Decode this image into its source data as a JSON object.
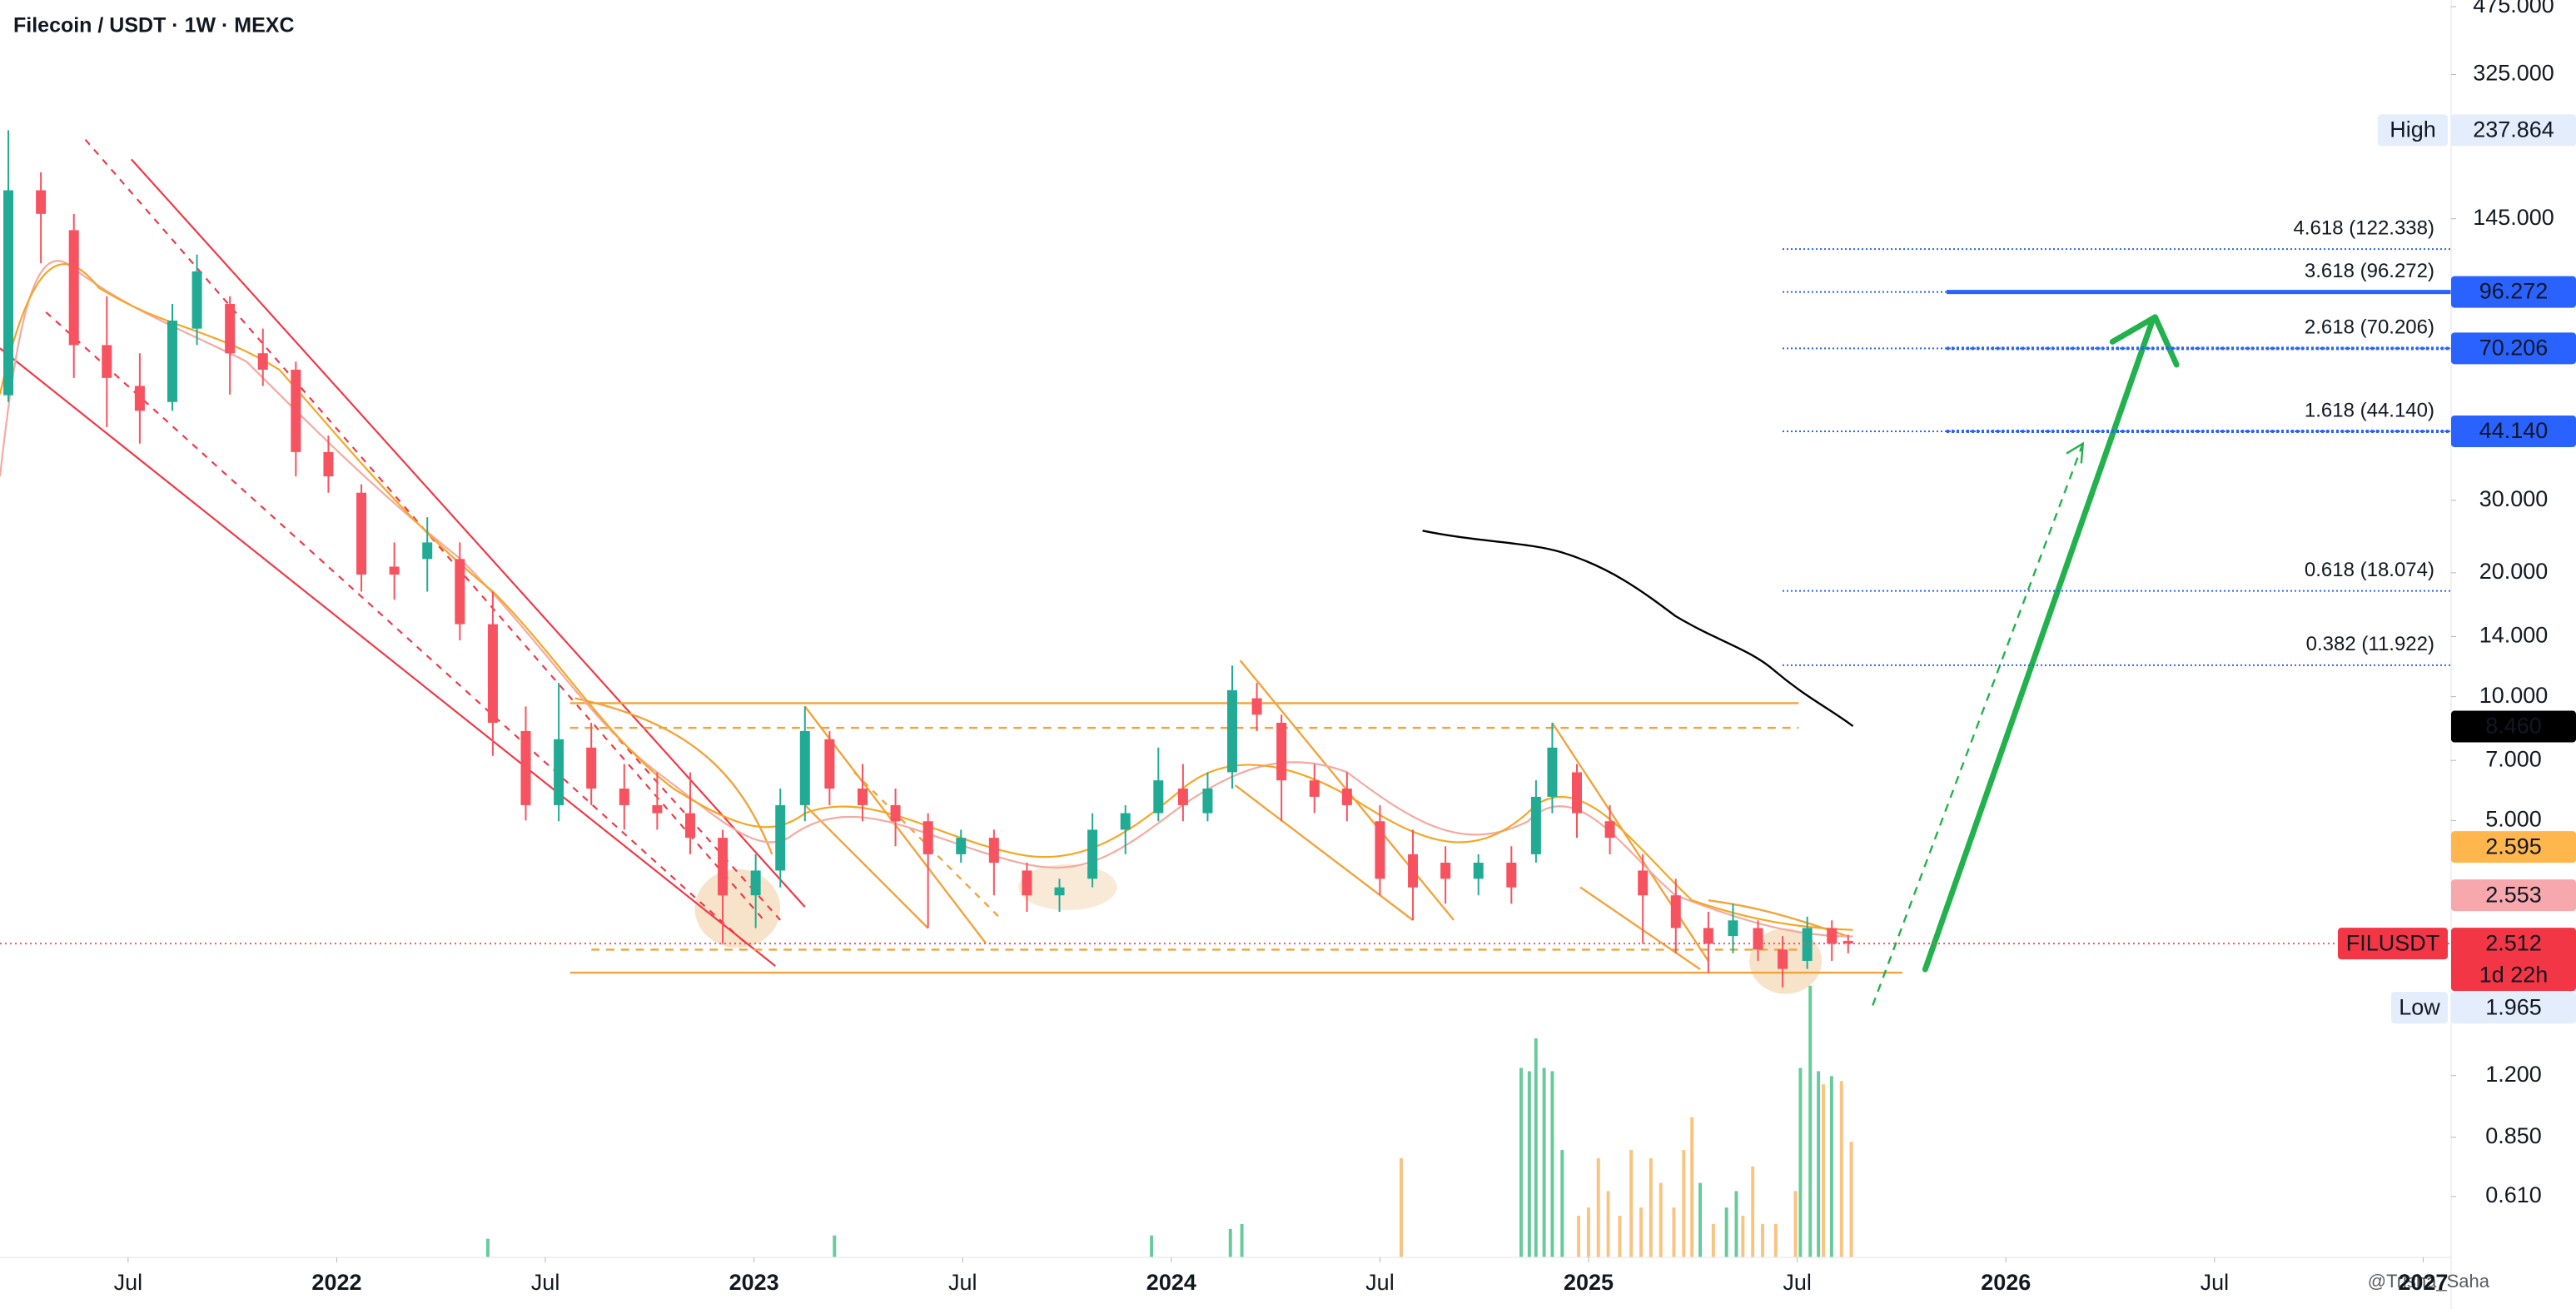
{
  "chart_data": {
    "type": "candlestick",
    "title": "Filecoin / USDT · 1W · MEXC",
    "watermark": "@Trisha_Saha",
    "log_scale": true,
    "grid": false,
    "up_color": "#22ab94",
    "down_color": "#f7525f",
    "xlim": [
      2021.193,
      2027.067
    ],
    "ylim": [
      0.434,
      493
    ],
    "xticks": [
      {
        "value": 2021.5,
        "label": "Jul"
      },
      2022,
      {
        "value": 2022.5,
        "label": "Jul"
      },
      2023,
      {
        "value": 2023.5,
        "label": "Jul"
      },
      2024,
      {
        "value": 2024.5,
        "label": "Jul"
      },
      2025,
      {
        "value": 2025.5,
        "label": "Jul"
      },
      2026,
      {
        "value": 2026.5,
        "label": "Jul"
      },
      2027
    ],
    "yticks": [
      {
        "value": 475,
        "label": "475.000"
      },
      {
        "value": 325,
        "label": "325.000"
      },
      {
        "value": 145,
        "label": "145.000"
      },
      {
        "value": 30,
        "label": "30.000"
      },
      {
        "value": 20,
        "label": "20.000"
      },
      {
        "value": 14,
        "label": "14.000"
      },
      {
        "value": 10,
        "label": "10.000"
      },
      {
        "value": 7,
        "label": "7.000"
      },
      {
        "value": 5,
        "label": "5.000"
      },
      {
        "value": 1.2,
        "label": "1.200"
      },
      {
        "value": 0.85,
        "label": "0.850"
      },
      {
        "value": 0.61,
        "label": "0.610"
      }
    ],
    "candles": [
      {
        "x": 2021.213,
        "open": 54,
        "high": 237.864,
        "low": 52,
        "close": 170
      },
      {
        "x": 2021.291,
        "open": 170,
        "high": 188,
        "low": 113,
        "close": 149
      },
      {
        "x": 2021.37,
        "open": 136,
        "high": 149,
        "low": 59.5,
        "close": 71.5
      },
      {
        "x": 2021.449,
        "open": 71.5,
        "high": 94,
        "low": 45.2,
        "close": 59.5
      },
      {
        "x": 2021.528,
        "open": 56.9,
        "high": 68.3,
        "low": 41.2,
        "close": 49.5
      },
      {
        "x": 2021.606,
        "open": 52,
        "high": 90,
        "low": 49.5,
        "close": 82
      },
      {
        "x": 2021.665,
        "open": 78.4,
        "high": 118.6,
        "low": 71.5,
        "close": 108
      },
      {
        "x": 2021.744,
        "open": 90,
        "high": 94,
        "low": 54.2,
        "close": 68.3
      },
      {
        "x": 2021.823,
        "open": 68.3,
        "high": 78.4,
        "low": 56.9,
        "close": 62.3
      },
      {
        "x": 2021.902,
        "open": 62.3,
        "high": 65.2,
        "low": 34.3,
        "close": 39.3
      },
      {
        "x": 2021.98,
        "open": 39.3,
        "high": 43.1,
        "low": 31.3,
        "close": 34.3
      },
      {
        "x": 2022.059,
        "open": 31.3,
        "high": 32.8,
        "low": 18.0,
        "close": 19.8
      },
      {
        "x": 2022.138,
        "open": 20.7,
        "high": 23.7,
        "low": 17.2,
        "close": 19.8
      },
      {
        "x": 2022.217,
        "open": 21.6,
        "high": 27.3,
        "low": 18.0,
        "close": 23.7
      },
      {
        "x": 2022.295,
        "open": 21.6,
        "high": 23.7,
        "low": 13.7,
        "close": 15.0
      },
      {
        "x": 2022.374,
        "open": 15.0,
        "high": 18.0,
        "low": 7.18,
        "close": 8.64
      },
      {
        "x": 2022.453,
        "open": 8.25,
        "high": 9.47,
        "low": 5.0,
        "close": 5.45
      },
      {
        "x": 2022.532,
        "open": 5.45,
        "high": 10.8,
        "low": 4.98,
        "close": 7.88
      },
      {
        "x": 2022.61,
        "open": 7.52,
        "high": 8.64,
        "low": 5.45,
        "close": 5.98
      },
      {
        "x": 2022.689,
        "open": 5.98,
        "high": 6.86,
        "low": 4.75,
        "close": 5.45
      },
      {
        "x": 2022.768,
        "open": 5.45,
        "high": 6.55,
        "low": 4.75,
        "close": 5.21
      },
      {
        "x": 2022.847,
        "open": 5.21,
        "high": 6.55,
        "low": 4.14,
        "close": 4.54
      },
      {
        "x": 2022.925,
        "open": 4.54,
        "high": 4.75,
        "low": 2.51,
        "close": 3.29
      },
      {
        "x": 2023.004,
        "open": 3.29,
        "high": 4.14,
        "low": 2.74,
        "close": 3.78
      },
      {
        "x": 2023.063,
        "open": 3.78,
        "high": 5.98,
        "low": 3.44,
        "close": 5.45
      },
      {
        "x": 2023.122,
        "open": 5.45,
        "high": 9.47,
        "low": 4.98,
        "close": 8.25
      },
      {
        "x": 2023.181,
        "open": 7.88,
        "high": 8.25,
        "low": 5.45,
        "close": 5.98
      },
      {
        "x": 2023.26,
        "open": 5.98,
        "high": 6.86,
        "low": 4.98,
        "close": 5.45
      },
      {
        "x": 2023.339,
        "open": 5.45,
        "high": 5.98,
        "low": 4.33,
        "close": 4.98
      },
      {
        "x": 2023.417,
        "open": 4.98,
        "high": 5.21,
        "low": 2.74,
        "close": 4.14
      },
      {
        "x": 2023.496,
        "open": 4.14,
        "high": 4.75,
        "low": 3.95,
        "close": 4.54
      },
      {
        "x": 2023.575,
        "open": 4.54,
        "high": 4.75,
        "low": 3.29,
        "close": 3.95
      },
      {
        "x": 2023.654,
        "open": 3.78,
        "high": 3.95,
        "low": 3.0,
        "close": 3.29
      },
      {
        "x": 2023.732,
        "open": 3.29,
        "high": 3.61,
        "low": 3.0,
        "close": 3.44
      },
      {
        "x": 2023.811,
        "open": 3.61,
        "high": 5.21,
        "low": 3.44,
        "close": 4.75
      },
      {
        "x": 2023.89,
        "open": 4.75,
        "high": 5.45,
        "low": 4.14,
        "close": 5.21
      },
      {
        "x": 2023.969,
        "open": 5.21,
        "high": 7.52,
        "low": 4.98,
        "close": 6.26
      },
      {
        "x": 2024.028,
        "open": 5.98,
        "high": 6.86,
        "low": 4.98,
        "close": 5.45
      },
      {
        "x": 2024.087,
        "open": 5.21,
        "high": 6.55,
        "low": 4.98,
        "close": 5.98
      },
      {
        "x": 2024.146,
        "open": 6.55,
        "high": 11.9,
        "low": 5.98,
        "close": 10.37
      },
      {
        "x": 2024.205,
        "open": 9.91,
        "high": 10.8,
        "low": 8.25,
        "close": 9.04
      },
      {
        "x": 2024.264,
        "open": 8.64,
        "high": 9.04,
        "low": 4.98,
        "close": 6.26
      },
      {
        "x": 2024.343,
        "open": 6.26,
        "high": 6.86,
        "low": 5.21,
        "close": 5.71
      },
      {
        "x": 2024.421,
        "open": 5.98,
        "high": 6.55,
        "low": 4.98,
        "close": 5.45
      },
      {
        "x": 2024.5,
        "open": 4.98,
        "high": 5.45,
        "low": 3.29,
        "close": 3.61
      },
      {
        "x": 2024.579,
        "open": 4.14,
        "high": 4.75,
        "low": 2.86,
        "close": 3.44
      },
      {
        "x": 2024.657,
        "open": 3.95,
        "high": 4.33,
        "low": 3.14,
        "close": 3.61
      },
      {
        "x": 2024.736,
        "open": 3.61,
        "high": 4.14,
        "low": 3.29,
        "close": 3.95
      },
      {
        "x": 2024.815,
        "open": 3.95,
        "high": 4.33,
        "low": 3.14,
        "close": 3.44
      },
      {
        "x": 2024.874,
        "open": 4.14,
        "high": 6.26,
        "low": 3.95,
        "close": 5.71
      },
      {
        "x": 2024.913,
        "open": 5.71,
        "high": 8.64,
        "low": 5.21,
        "close": 7.52
      },
      {
        "x": 2024.972,
        "open": 6.55,
        "high": 6.86,
        "low": 4.54,
        "close": 5.21
      },
      {
        "x": 2025.051,
        "open": 4.98,
        "high": 5.45,
        "low": 4.14,
        "close": 4.54
      },
      {
        "x": 2025.13,
        "open": 3.78,
        "high": 4.14,
        "low": 2.51,
        "close": 3.29
      },
      {
        "x": 2025.209,
        "open": 3.29,
        "high": 3.61,
        "low": 2.38,
        "close": 2.74
      },
      {
        "x": 2025.287,
        "open": 2.74,
        "high": 3.0,
        "low": 2.13,
        "close": 2.51
      },
      {
        "x": 2025.346,
        "open": 2.62,
        "high": 3.14,
        "low": 2.38,
        "close": 2.86
      },
      {
        "x": 2025.406,
        "open": 2.74,
        "high": 2.86,
        "low": 2.28,
        "close": 2.43
      },
      {
        "x": 2025.465,
        "open": 2.43,
        "high": 2.62,
        "low": 1.965,
        "close": 2.18
      },
      {
        "x": 2025.524,
        "open": 2.28,
        "high": 2.92,
        "low": 2.18,
        "close": 2.74
      },
      {
        "x": 2025.583,
        "open": 2.74,
        "high": 2.86,
        "low": 2.28,
        "close": 2.51
      },
      {
        "x": 2025.622,
        "open": 2.55,
        "high": 2.64,
        "low": 2.38,
        "close": 2.512
      }
    ],
    "fib_levels": [
      {
        "value": 122.338,
        "label": "4.618 (122.338)"
      },
      {
        "value": 96.272,
        "label": "3.618 (96.272)"
      },
      {
        "value": 70.206,
        "label": "2.618 (70.206)"
      },
      {
        "value": 44.14,
        "label": "1.618 (44.140)"
      },
      {
        "value": 18.074,
        "label": "0.618 (18.074)"
      },
      {
        "value": 11.922,
        "label": "0.382 (11.922)"
      }
    ],
    "fib_color": "#2962ff",
    "price_tags": [
      {
        "name": "High",
        "value": 237.864,
        "label": "237.864",
        "color": "#e3edfb",
        "text_color": "#131722"
      },
      {
        "value": 96.272,
        "label": "96.272",
        "color": "#2962ff",
        "text_color": "#ffffff",
        "line": "solid"
      },
      {
        "value": 70.206,
        "label": "70.206",
        "color": "#2962ff",
        "text_color": "#ffffff",
        "line": "dotted"
      },
      {
        "value": 44.14,
        "label": "44.140",
        "color": "#2962ff",
        "text_color": "#ffffff",
        "line": "dotted"
      },
      {
        "value": 8.46,
        "label": "8.460",
        "color": "#000000",
        "text_color": "#ffffff"
      },
      {
        "value": 2.595,
        "label": "2.595",
        "color": "#ffb74d",
        "text_color": "#131722"
      },
      {
        "value": 2.553,
        "label": "2.553",
        "color": "#f7a8ad",
        "text_color": "#131722"
      },
      {
        "name": "FILUSDT",
        "value": 2.512,
        "label": "2.512",
        "sublabel": "1d 22h",
        "color": "#f23645",
        "text_color": "#ffffff"
      },
      {
        "name": "Low",
        "value": 1.965,
        "label": "1.965",
        "color": "#e3edfb",
        "text_color": "#131722"
      }
    ]
  }
}
